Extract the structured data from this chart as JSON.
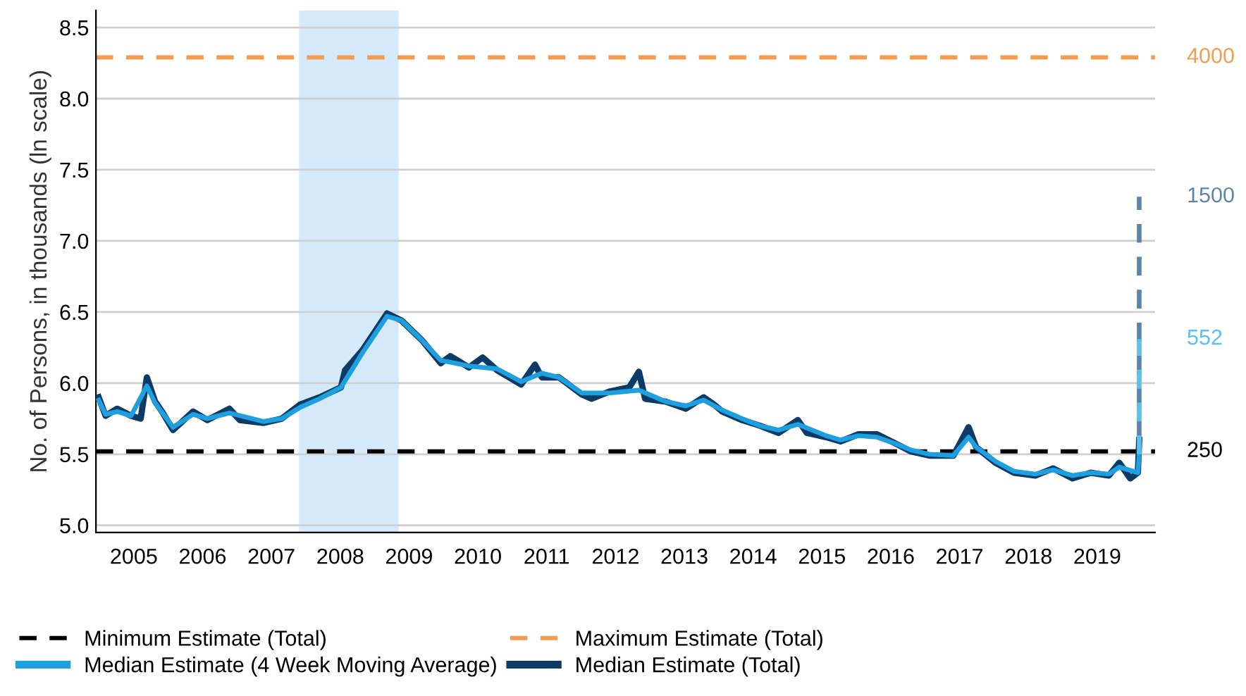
{
  "chart_data": {
    "type": "line",
    "ylabel": "No. of Persons, in thousands (ln scale)",
    "xlim": [
      2004.95,
      2020.34
    ],
    "ylim": [
      4.95,
      8.62
    ],
    "xticks": [
      {
        "value": 2005.5,
        "label": "2005"
      },
      {
        "value": 2006.5,
        "label": "2006"
      },
      {
        "value": 2007.5,
        "label": "2007"
      },
      {
        "value": 2008.5,
        "label": "2008"
      },
      {
        "value": 2009.5,
        "label": "2009"
      },
      {
        "value": 2010.5,
        "label": "2010"
      },
      {
        "value": 2011.5,
        "label": "2011"
      },
      {
        "value": 2012.5,
        "label": "2012"
      },
      {
        "value": 2013.5,
        "label": "2013"
      },
      {
        "value": 2014.5,
        "label": "2014"
      },
      {
        "value": 2015.5,
        "label": "2015"
      },
      {
        "value": 2016.5,
        "label": "2016"
      },
      {
        "value": 2017.5,
        "label": "2017"
      },
      {
        "value": 2018.5,
        "label": "2018"
      },
      {
        "value": 2019.5,
        "label": "2019"
      }
    ],
    "yticks": [
      {
        "value": 5.0,
        "label": "5.0"
      },
      5.5,
      {
        "value": 6.0,
        "label": "6.0"
      },
      6.5,
      {
        "value": 7.0,
        "label": "7.0"
      },
      7.5,
      {
        "value": 8.0,
        "label": "8.0"
      },
      8.5
    ],
    "grid": "y",
    "legend": "bottom",
    "marker": "none",
    "series": [
      {
        "name": "Median Estimate (Total)",
        "color": "#0d3b66",
        "line_style": "solid",
        "x": [
          2004.99,
          2005.09,
          2005.26,
          2005.46,
          2005.6,
          2005.69,
          2005.81,
          2005.91,
          2006.07,
          2006.36,
          2006.57,
          2006.89,
          2007.04,
          2007.38,
          2007.65,
          2007.92,
          2008.2,
          2008.51,
          2008.57,
          2008.82,
          2009.18,
          2009.39,
          2009.69,
          2009.96,
          2010.1,
          2010.37,
          2010.57,
          2010.78,
          2011.13,
          2011.33,
          2011.43,
          2011.68,
          2012.01,
          2012.15,
          2012.41,
          2012.7,
          2012.84,
          2012.93,
          2013.23,
          2013.52,
          2013.78,
          2013.93,
          2014.05,
          2014.34,
          2014.6,
          2014.87,
          2015.15,
          2015.28,
          2015.56,
          2015.77,
          2016.03,
          2016.3,
          2016.59,
          2016.79,
          2017.06,
          2017.41,
          2017.63,
          2017.74,
          2018.02,
          2018.29,
          2018.6,
          2018.86,
          2019.14,
          2019.41,
          2019.67,
          2019.82,
          2019.98,
          2020.09,
          2020.11
        ],
        "values": [
          5.9,
          5.77,
          5.82,
          5.77,
          5.75,
          6.04,
          5.87,
          5.8,
          5.67,
          5.8,
          5.74,
          5.82,
          5.74,
          5.72,
          5.75,
          5.85,
          5.9,
          5.97,
          6.09,
          6.23,
          6.49,
          6.44,
          6.3,
          6.14,
          6.19,
          6.11,
          6.18,
          6.09,
          5.99,
          6.13,
          6.04,
          6.04,
          5.92,
          5.89,
          5.94,
          5.97,
          6.08,
          5.89,
          5.87,
          5.82,
          5.9,
          5.85,
          5.8,
          5.74,
          5.7,
          5.65,
          5.74,
          5.65,
          5.62,
          5.59,
          5.64,
          5.64,
          5.57,
          5.52,
          5.49,
          5.49,
          5.69,
          5.55,
          5.44,
          5.37,
          5.35,
          5.4,
          5.33,
          5.37,
          5.35,
          5.44,
          5.33,
          5.37,
          5.6
        ]
      },
      {
        "name": "Median Estimate (4 Week Moving Average)",
        "color": "#1ea0e0",
        "line_style": "solid",
        "x": [
          2004.99,
          2005.09,
          2005.26,
          2005.46,
          2005.69,
          2005.81,
          2006.07,
          2006.36,
          2006.57,
          2006.89,
          2007.38,
          2007.65,
          2007.92,
          2008.2,
          2008.51,
          2008.82,
          2009.18,
          2009.39,
          2009.69,
          2009.96,
          2010.37,
          2010.78,
          2011.13,
          2011.43,
          2011.68,
          2012.01,
          2012.41,
          2012.84,
          2013.23,
          2013.52,
          2013.78,
          2014.05,
          2014.34,
          2014.6,
          2014.87,
          2015.15,
          2015.56,
          2015.77,
          2016.03,
          2016.3,
          2016.59,
          2016.79,
          2017.06,
          2017.41,
          2017.63,
          2017.74,
          2018.02,
          2018.29,
          2018.6,
          2018.86,
          2019.14,
          2019.41,
          2019.67,
          2019.82,
          2020.09,
          2020.11
        ],
        "values": [
          5.88,
          5.78,
          5.8,
          5.77,
          5.98,
          5.86,
          5.69,
          5.78,
          5.75,
          5.79,
          5.73,
          5.75,
          5.83,
          5.89,
          5.97,
          6.21,
          6.47,
          6.44,
          6.3,
          6.16,
          6.12,
          6.1,
          6.01,
          6.07,
          6.04,
          5.93,
          5.93,
          5.95,
          5.87,
          5.84,
          5.88,
          5.81,
          5.75,
          5.7,
          5.67,
          5.71,
          5.63,
          5.6,
          5.63,
          5.62,
          5.57,
          5.53,
          5.5,
          5.49,
          5.62,
          5.55,
          5.45,
          5.38,
          5.36,
          5.39,
          5.35,
          5.37,
          5.36,
          5.41,
          5.37,
          5.5
        ]
      },
      {
        "color": "#5b84ad",
        "line_style": "dashed",
        "x": [
          2020.11,
          2020.11
        ],
        "values": [
          5.6,
          7.31
        ]
      },
      {
        "color": "#5bc0eb",
        "line_style": "dashed",
        "x": [
          2020.11,
          2020.11
        ],
        "values": [
          5.5,
          6.31
        ]
      }
    ],
    "ref_lines": [
      {
        "axis": "y",
        "value": 5.52,
        "label": "Minimum Estimate (Total)",
        "color": "#000000",
        "line_style": "dashed"
      },
      {
        "axis": "y",
        "value": 8.29,
        "label": "Maximum Estimate (Total)",
        "color": "#f39c4f",
        "line_style": "dashed"
      }
    ],
    "bands": [
      {
        "axis": "x",
        "from": 2007.9,
        "to": 2009.35,
        "color": "#d4eafa"
      }
    ],
    "annotations": [
      "4000",
      "1500",
      "552",
      "250"
    ]
  }
}
